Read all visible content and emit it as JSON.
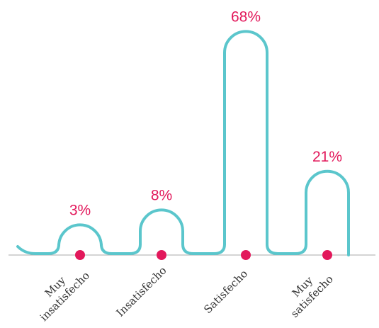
{
  "chart_data": {
    "type": "bar",
    "categories": [
      "Muy insatisfecho",
      "Insatisfecho",
      "Satisfecho",
      "Muy satisfecho"
    ],
    "values": [
      3,
      8,
      68,
      21
    ],
    "value_labels": [
      "3%",
      "8%",
      "68%",
      "21%"
    ],
    "color": "#5bc6cc",
    "dot_color": "#e2185b",
    "label_color": "#e2185b"
  }
}
